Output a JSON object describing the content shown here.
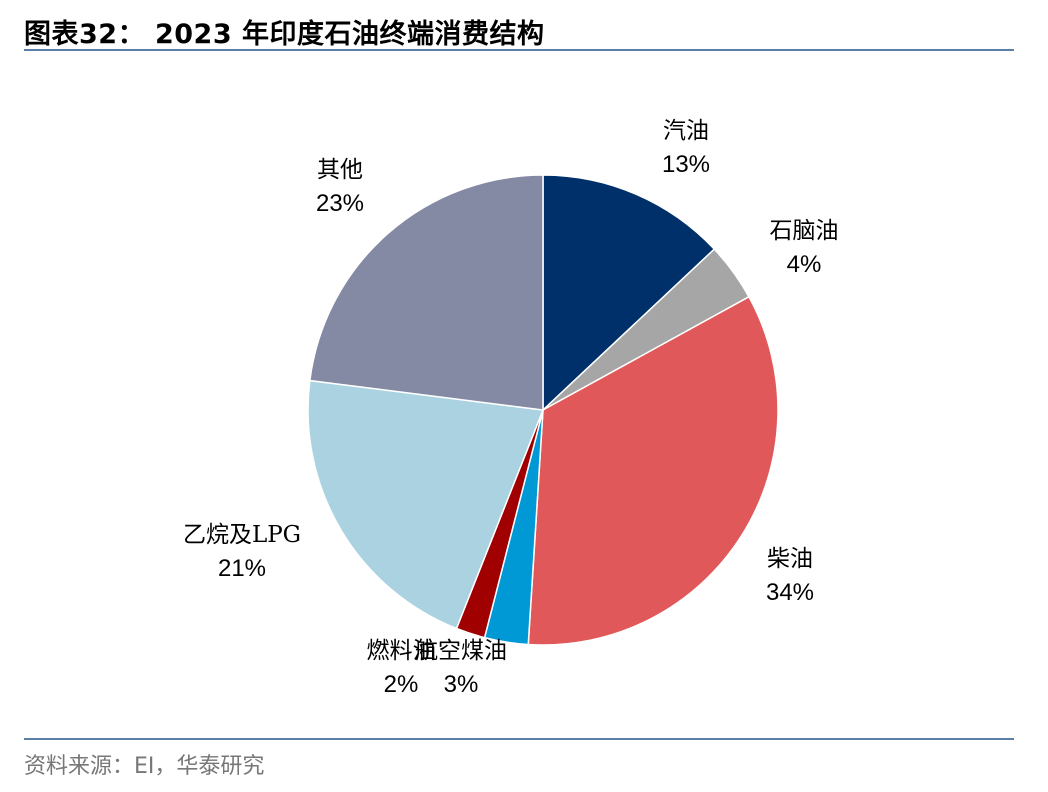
{
  "title": "图表32： 2023 年印度石油终端消费结构",
  "source": "资料来源：EI，华泰研究",
  "chart_data": {
    "type": "pie",
    "title": "2023 年印度石油终端消费结构",
    "start_angle": "12 o'clock",
    "direction": "clockwise",
    "slices": [
      {
        "label": "汽油",
        "value": 13,
        "value_label": "13%",
        "color": "#00306A"
      },
      {
        "label": "石脑油",
        "value": 4,
        "value_label": "4%",
        "color": "#A6A6A6"
      },
      {
        "label": "柴油",
        "value": 34,
        "value_label": "34%",
        "color": "#E05859"
      },
      {
        "label": "航空煤油",
        "value": 3,
        "value_label": "3%",
        "color": "#0099D5"
      },
      {
        "label": "燃料油",
        "value": 2,
        "value_label": "2%",
        "color": "#A00000"
      },
      {
        "label": "乙烷及LPG",
        "value": 21,
        "value_label": "21%",
        "color": "#AAD2E1"
      },
      {
        "label": "其他",
        "value": 23,
        "value_label": "23%",
        "color": "#8489A4"
      }
    ]
  }
}
